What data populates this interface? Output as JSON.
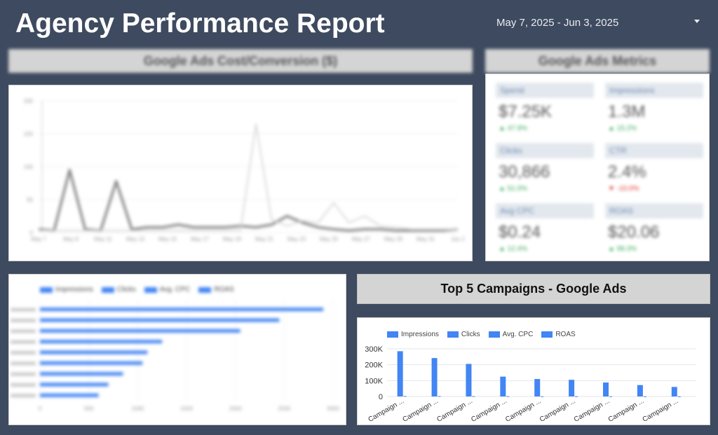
{
  "header": {
    "title": "Agency Performance Report",
    "date_range": "May 7, 2025 - Jun 3, 2025"
  },
  "cost_conversion": {
    "title": "Google Ads  Cost/Conversion ($)",
    "chart_data": {
      "type": "line",
      "title": "Google Ads  Cost/Conversion ($)",
      "x": [
        "May 7",
        "May 8",
        "May 9",
        "May 10",
        "May 11",
        "May 12",
        "May 13",
        "May 14",
        "May 15",
        "May 16",
        "May 17",
        "May 18",
        "May 19",
        "May 20",
        "May 21",
        "May 22",
        "May 23",
        "May 24",
        "May 25",
        "May 26",
        "May 27",
        "May 28",
        "May 29",
        "May 30",
        "May 31",
        "Jun 1",
        "Jun 2",
        "Jun 3"
      ],
      "x_ticks": [
        "May 7",
        "May 9",
        "May 11",
        "May 13",
        "May 15",
        "May 17",
        "May 19",
        "May 21",
        "May 23",
        "May 25",
        "May 27",
        "May 29",
        "May 31",
        "Jun 2"
      ],
      "y_ticks": [
        "0",
        "50",
        "100",
        "150",
        "200"
      ],
      "ylim": [
        0,
        200
      ],
      "series": [
        {
          "values": [
            5,
            3,
            95,
            5,
            3,
            78,
            5,
            8,
            8,
            12,
            8,
            8,
            8,
            10,
            8,
            12,
            25,
            15,
            8,
            5,
            3,
            5,
            5,
            3,
            3,
            3,
            3,
            5
          ]
        },
        {
          "values": [
            3,
            3,
            3,
            3,
            3,
            3,
            3,
            3,
            3,
            3,
            3,
            3,
            3,
            3,
            165,
            20,
            10,
            18,
            15,
            45,
            15,
            25,
            10,
            8,
            5,
            5,
            5,
            5
          ]
        }
      ]
    }
  },
  "metrics": {
    "title": "Google Ads Metrics",
    "items": [
      {
        "label": "Spend",
        "value": "$7.25K",
        "delta": "▲ 47.9%",
        "dir": "up"
      },
      {
        "label": "Impressions",
        "value": "1.3M",
        "delta": "▲ 15.2%",
        "dir": "up"
      },
      {
        "label": "Clicks",
        "value": "30,866",
        "delta": "▲ 51.0%",
        "dir": "up"
      },
      {
        "label": "CTR",
        "value": "2.4%",
        "delta": "▼ -10.0%",
        "dir": "down"
      },
      {
        "label": "Avg CPC",
        "value": "$0.24",
        "delta": "▲ 12.4%",
        "dir": "up"
      },
      {
        "label": "ROAS",
        "value": "$20.06",
        "delta": "▲ 98.3%",
        "dir": "up"
      }
    ]
  },
  "hbar": {
    "legend": [
      "Impressions",
      "Clicks",
      "Avg. CPC",
      "ROAS"
    ],
    "chart_data": {
      "type": "bar",
      "orientation": "horizontal",
      "x_ticks": [
        "0",
        "500",
        "1000",
        "1500",
        "2000",
        "2500",
        "3000"
      ],
      "xlim": [
        0,
        3000
      ],
      "series": [
        {
          "name": "Impressions",
          "values": [
            2900,
            2450,
            2050,
            1250,
            1100,
            1050,
            850,
            700,
            600
          ]
        }
      ]
    }
  },
  "top5": {
    "title": "Top 5 Campaigns - Google Ads",
    "legend": [
      "Impressions",
      "Clicks",
      "Avg. CPC",
      "ROAS"
    ],
    "chart_data": {
      "type": "bar",
      "categories": [
        "Campaign ...",
        "Campaign ...",
        "Campaign ...",
        "Campaign ...",
        "Campaign ...",
        "Campaign ...",
        "Campaign ...",
        "Campaign ...",
        "Campaign ..."
      ],
      "y_ticks": [
        "0",
        "100K",
        "200K",
        "300K"
      ],
      "ylim": [
        0,
        300000
      ],
      "series": [
        {
          "name": "Impressions",
          "values": [
            285000,
            242000,
            205000,
            125000,
            110000,
            105000,
            88000,
            72000,
            60000
          ]
        },
        {
          "name": "Clicks",
          "values": [
            3000,
            2500,
            2000,
            1500,
            1200,
            1100,
            900,
            700,
            600
          ]
        }
      ]
    }
  },
  "colors": {
    "background": "#3e4a5f",
    "bar": "#4285f4",
    "positive": "#34a853",
    "negative": "#d93025"
  }
}
